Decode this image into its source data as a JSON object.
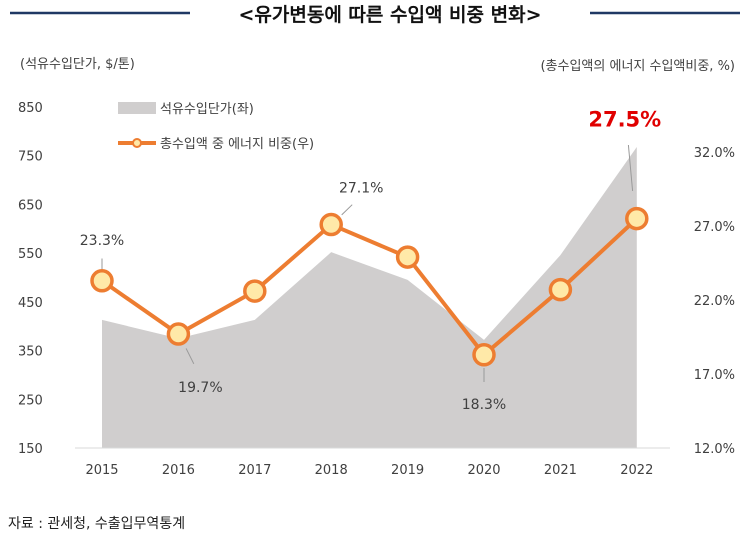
{
  "title": "<유가변동에 따른 수입액 비중 변화>",
  "source": "자료 : 관세청, 수출입무역통계",
  "colors": {
    "area": "#D0CECE",
    "line": "#ED7D31",
    "marker_fill": "#FFE9A8",
    "title_rule": "#1F3864",
    "highlight": "#E00000"
  },
  "chart_data": {
    "type": "area+line",
    "categories": [
      "2015",
      "2016",
      "2017",
      "2018",
      "2019",
      "2020",
      "2021",
      "2022"
    ],
    "y_left_label": "(석유수입단가, $/톤)",
    "y_right_label": "(총수입액의 에너지 수입액비중, %)",
    "y_left_ticks": [
      "850",
      "750",
      "650",
      "550",
      "450",
      "350",
      "250",
      "150"
    ],
    "y_left_range": [
      150,
      850
    ],
    "y_right_ticks": [
      "32.0%",
      "27.0%",
      "22.0%",
      "17.0%",
      "12.0%"
    ],
    "y_right_range": [
      12,
      32
    ],
    "series": [
      {
        "name": "석유수입단가(좌)",
        "type": "area",
        "axis": "left",
        "values": [
          413,
          375,
          413,
          552,
          495,
          372,
          546,
          768
        ]
      },
      {
        "name": "총수입액 중 에너지 비중(우)",
        "type": "line",
        "axis": "right",
        "values": [
          23.3,
          19.7,
          22.6,
          27.1,
          24.9,
          18.3,
          22.7,
          27.5
        ]
      }
    ],
    "data_labels": [
      {
        "category": "2015",
        "text": "23.3%"
      },
      {
        "category": "2016",
        "text": "19.7%"
      },
      {
        "category": "2018",
        "text": "27.1%"
      },
      {
        "category": "2020",
        "text": "18.3%"
      },
      {
        "category": "2022",
        "text": "27.5%",
        "highlight": true
      }
    ],
    "grid": false,
    "legend_position": "top-left"
  }
}
